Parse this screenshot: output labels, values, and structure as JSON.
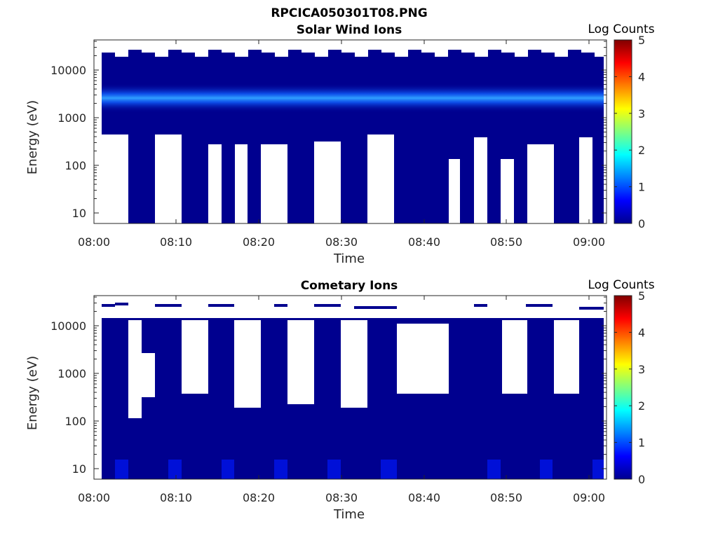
{
  "figure": {
    "title": "RPCICA050301T08.PNG"
  },
  "chart_data": [
    {
      "type": "heatmap",
      "title": "Solar Wind Ions",
      "xlabel": "Time",
      "ylabel": "Energy (eV)",
      "x_ticks": [
        "08:00",
        "08:10",
        "08:20",
        "08:30",
        "08:40",
        "08:50",
        "09:00"
      ],
      "y_ticks": [
        "10",
        "100",
        "1000",
        "10000"
      ],
      "y_scale": "log",
      "colorbar": {
        "label": "Log Counts",
        "ticks": [
          "0",
          "1",
          "2",
          "3",
          "4",
          "5"
        ],
        "range": [
          0,
          5
        ]
      },
      "peak_energy_band_eV": [
        1200,
        3500
      ],
      "peak_log_counts_approx": 1.5,
      "background_log_counts": 0
    },
    {
      "type": "heatmap",
      "title": "Cometary Ions",
      "xlabel": "Time",
      "ylabel": "Energy (eV)",
      "x_ticks": [
        "08:00",
        "08:10",
        "08:20",
        "08:30",
        "08:40",
        "08:50",
        "09:00"
      ],
      "y_ticks": [
        "10",
        "100",
        "1000",
        "10000"
      ],
      "y_scale": "log",
      "colorbar": {
        "label": "Log Counts",
        "ticks": [
          "0",
          "1",
          "2",
          "3",
          "4",
          "5"
        ],
        "range": [
          0,
          5
        ]
      },
      "low_energy_peak_log_counts_approx": 0.8,
      "background_log_counts": 0
    }
  ]
}
